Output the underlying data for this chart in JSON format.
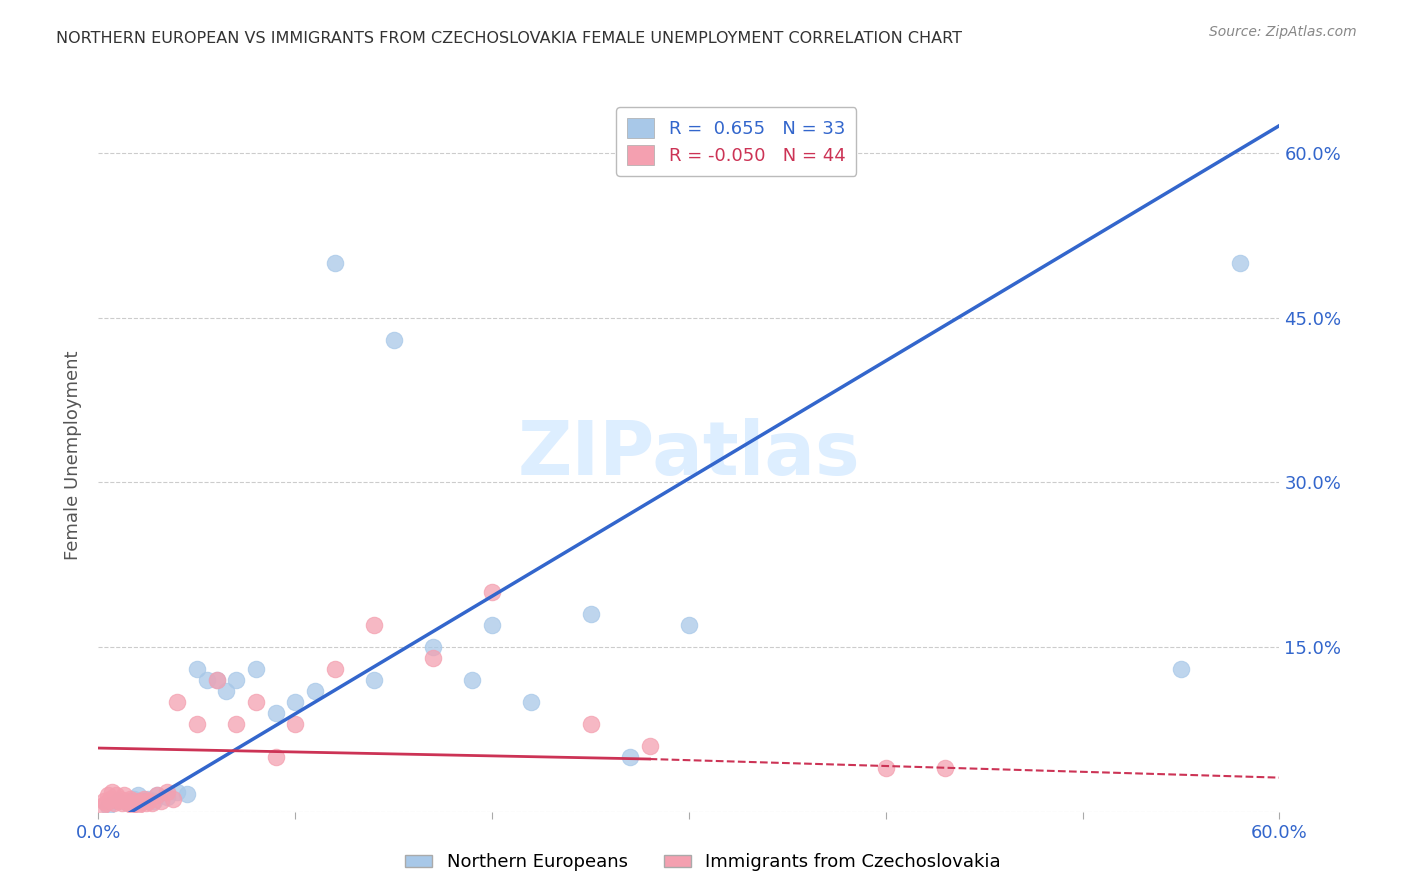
{
  "title": "NORTHERN EUROPEAN VS IMMIGRANTS FROM CZECHOSLOVAKIA FEMALE UNEMPLOYMENT CORRELATION CHART",
  "source": "Source: ZipAtlas.com",
  "ylabel": "Female Unemployment",
  "xlim": [
    0.0,
    0.6
  ],
  "ylim": [
    0.0,
    0.65
  ],
  "x_ticks": [
    0.0,
    0.1,
    0.2,
    0.3,
    0.4,
    0.5,
    0.6
  ],
  "x_tick_labels": [
    "0.0%",
    "",
    "",
    "",
    "",
    "",
    "60.0%"
  ],
  "y_ticks_right": [
    0.0,
    0.15,
    0.3,
    0.45,
    0.6
  ],
  "y_tick_labels_right": [
    "",
    "15.0%",
    "30.0%",
    "45.0%",
    "60.0%"
  ],
  "blue_R": 0.655,
  "blue_N": 33,
  "pink_R": -0.05,
  "pink_N": 44,
  "blue_color": "#a8c8e8",
  "pink_color": "#f4a0b0",
  "blue_line_color": "#3366cc",
  "pink_line_color": "#cc3355",
  "watermark": "ZIPatlas",
  "watermark_color": "#ddeeff",
  "title_color": "#333333",
  "axis_label_color": "#3366cc",
  "legend_blue_label": "Northern Europeans",
  "legend_pink_label": "Immigrants from Czechoslovakia",
  "blue_scatter_x": [
    0.005,
    0.01,
    0.015,
    0.018,
    0.02,
    0.022,
    0.025,
    0.028,
    0.03,
    0.035,
    0.04,
    0.045,
    0.05,
    0.055,
    0.06,
    0.065,
    0.07,
    0.08,
    0.09,
    0.1,
    0.11,
    0.12,
    0.14,
    0.15,
    0.17,
    0.19,
    0.2,
    0.22,
    0.25,
    0.27,
    0.3,
    0.55,
    0.58
  ],
  "blue_scatter_y": [
    0.005,
    0.01,
    0.008,
    0.012,
    0.015,
    0.01,
    0.012,
    0.01,
    0.015,
    0.013,
    0.018,
    0.016,
    0.13,
    0.12,
    0.12,
    0.11,
    0.12,
    0.13,
    0.09,
    0.1,
    0.11,
    0.5,
    0.12,
    0.43,
    0.15,
    0.12,
    0.17,
    0.1,
    0.18,
    0.05,
    0.17,
    0.13,
    0.5
  ],
  "pink_scatter_x": [
    0.002,
    0.003,
    0.004,
    0.005,
    0.006,
    0.007,
    0.008,
    0.009,
    0.01,
    0.011,
    0.012,
    0.013,
    0.014,
    0.015,
    0.016,
    0.017,
    0.018,
    0.019,
    0.02,
    0.021,
    0.022,
    0.023,
    0.024,
    0.025,
    0.027,
    0.03,
    0.032,
    0.035,
    0.038,
    0.04,
    0.05,
    0.06,
    0.07,
    0.08,
    0.09,
    0.1,
    0.12,
    0.14,
    0.17,
    0.2,
    0.25,
    0.4,
    0.43,
    0.28
  ],
  "pink_scatter_y": [
    0.005,
    0.01,
    0.008,
    0.015,
    0.012,
    0.018,
    0.008,
    0.015,
    0.01,
    0.012,
    0.008,
    0.015,
    0.01,
    0.008,
    0.012,
    0.006,
    0.008,
    0.01,
    0.006,
    0.008,
    0.01,
    0.012,
    0.008,
    0.01,
    0.008,
    0.015,
    0.01,
    0.018,
    0.012,
    0.1,
    0.08,
    0.12,
    0.08,
    0.1,
    0.05,
    0.08,
    0.13,
    0.17,
    0.14,
    0.2,
    0.08,
    0.04,
    0.04,
    0.06
  ],
  "grid_color": "#cccccc",
  "background_color": "#ffffff"
}
